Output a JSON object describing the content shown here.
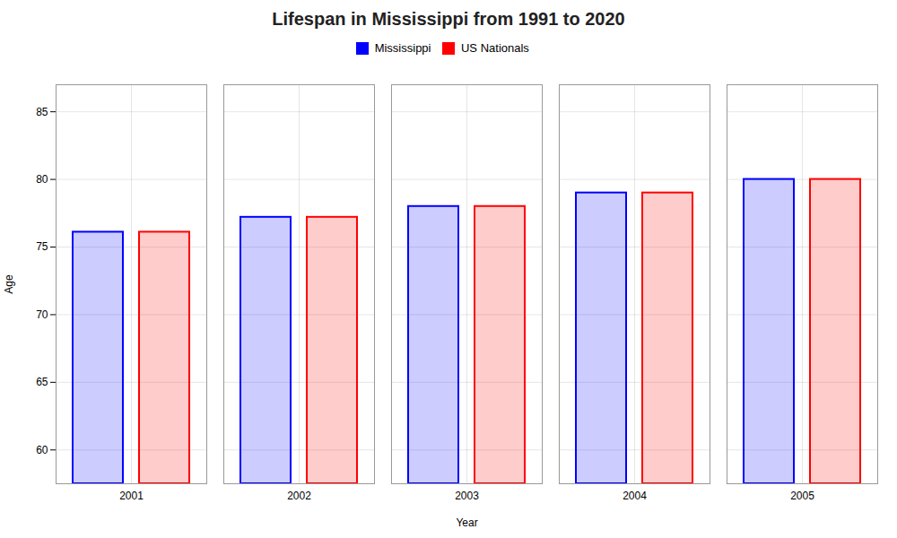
{
  "chart_data": {
    "type": "bar",
    "title": "Lifespan in Mississippi from 1991 to 2020",
    "x_label": "Year",
    "y_label": "Age",
    "categories": [
      "2001",
      "2002",
      "2003",
      "2004",
      "2005"
    ],
    "series": [
      {
        "name": "Mississippi",
        "color": "#0000ff",
        "values": [
          76.1,
          77.2,
          78.0,
          79.0,
          80.0
        ]
      },
      {
        "name": "US Nationals",
        "color": "#ff0000",
        "values": [
          76.1,
          77.2,
          78.0,
          79.0,
          80.0
        ]
      }
    ],
    "ylim": [
      57.5,
      87
    ],
    "yticks": [
      60,
      65,
      70,
      75,
      80,
      85
    ],
    "grid": true,
    "legend": "top"
  }
}
